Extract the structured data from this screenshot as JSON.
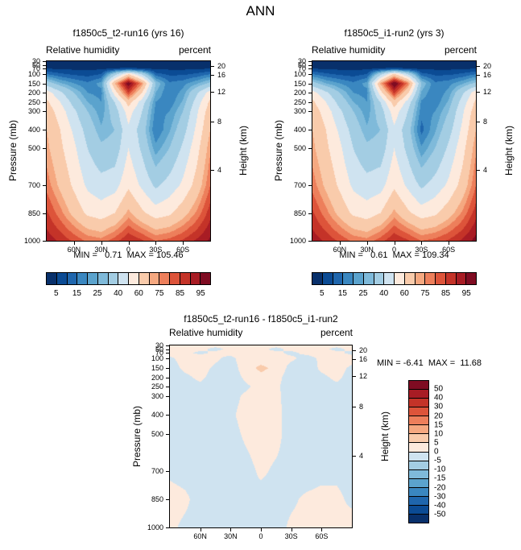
{
  "title": "ANN",
  "chart_data": [
    {
      "type": "heatmap",
      "panel": "top-left",
      "title": "f1850c5_t2-run16 (yrs 16)",
      "field_label": "Relative humidity",
      "units_label": "percent",
      "ylabel": "Pressure (mb)",
      "y2label": "Height (km)",
      "min_max_label": "MIN =   0.71  MAX = 105.46",
      "min": 0.71,
      "max": 105.46,
      "lat_range": [
        90,
        -90
      ],
      "p_range": [
        30,
        1000
      ],
      "x_tick_labels": [
        "60N",
        "30N",
        "0",
        "30S",
        "60S"
      ],
      "x_tick_lats": [
        60,
        30,
        0,
        -30,
        -60
      ],
      "y_ticks": [
        30,
        50,
        70,
        100,
        150,
        200,
        250,
        300,
        400,
        500,
        700,
        850,
        1000
      ],
      "y2_ticks": [
        20,
        16,
        12,
        8,
        4
      ],
      "levels": [
        5,
        10,
        15,
        20,
        25,
        30,
        40,
        50,
        60,
        70,
        75,
        80,
        85,
        90,
        95
      ],
      "colorbar_tick_labels": [
        "5",
        "15",
        "25",
        "40",
        "60",
        "75",
        "85",
        "95"
      ],
      "palette": [
        "#08306b",
        "#0b4b94",
        "#1f66ad",
        "#3a87c0",
        "#5ba3cd",
        "#7fbada",
        "#a3cde3",
        "#cfe3f0",
        "#fdeadd",
        "#f9cbab",
        "#f5a880",
        "#ed7f5b",
        "#dd543a",
        "#c43328",
        "#a81c24",
        "#7f0c22"
      ],
      "lats": [
        90,
        75,
        60,
        45,
        30,
        15,
        0,
        -15,
        -30,
        -45,
        -60,
        -75,
        -90
      ],
      "plevs": [
        30,
        50,
        70,
        100,
        150,
        200,
        250,
        300,
        400,
        500,
        700,
        850,
        1000
      ],
      "values": [
        [
          2,
          2,
          2,
          2,
          2,
          2,
          2,
          2,
          2,
          2,
          2,
          2,
          2
        ],
        [
          3,
          3,
          3,
          3,
          3,
          3,
          3,
          3,
          3,
          3,
          3,
          3,
          3
        ],
        [
          5,
          4,
          4,
          4,
          4,
          5,
          6,
          5,
          4,
          4,
          4,
          4,
          5
        ],
        [
          15,
          11,
          9,
          8,
          10,
          35,
          60,
          38,
          12,
          9,
          9,
          11,
          15
        ],
        [
          35,
          26,
          20,
          16,
          22,
          70,
          100,
          75,
          30,
          16,
          18,
          24,
          32
        ],
        [
          55,
          42,
          30,
          20,
          18,
          55,
          85,
          60,
          25,
          15,
          22,
          38,
          55
        ],
        [
          62,
          50,
          36,
          25,
          20,
          40,
          65,
          45,
          20,
          16,
          26,
          44,
          62
        ],
        [
          66,
          55,
          42,
          30,
          22,
          35,
          55,
          40,
          18,
          20,
          30,
          48,
          66
        ],
        [
          70,
          60,
          48,
          36,
          26,
          30,
          48,
          35,
          15,
          24,
          36,
          52,
          70
        ],
        [
          72,
          62,
          52,
          40,
          32,
          34,
          50,
          38,
          22,
          30,
          42,
          56,
          74
        ],
        [
          78,
          68,
          58,
          48,
          44,
          46,
          58,
          48,
          38,
          44,
          52,
          64,
          80
        ],
        [
          86,
          77,
          67,
          58,
          55,
          60,
          72,
          62,
          55,
          58,
          66,
          76,
          88
        ],
        [
          93,
          89,
          84,
          79,
          77,
          83,
          90,
          86,
          80,
          82,
          86,
          91,
          96
        ]
      ]
    },
    {
      "type": "heatmap",
      "panel": "top-right",
      "title": "f1850c5_i1-run2 (yrs 3)",
      "field_label": "Relative humidity",
      "units_label": "percent",
      "ylabel": "Pressure (mb)",
      "y2label": "Height (km)",
      "min_max_label": "MIN =   0.61  MAX = 109.34",
      "min": 0.61,
      "max": 109.34,
      "lat_range": [
        90,
        -90
      ],
      "p_range": [
        30,
        1000
      ],
      "x_tick_labels": [
        "60N",
        "30N",
        "0",
        "30S",
        "60S"
      ],
      "x_tick_lats": [
        60,
        30,
        0,
        -30,
        -60
      ],
      "y_ticks": [
        30,
        50,
        70,
        100,
        150,
        200,
        250,
        300,
        400,
        500,
        700,
        850,
        1000
      ],
      "y2_ticks": [
        20,
        16,
        12,
        8,
        4
      ],
      "levels": [
        5,
        10,
        15,
        20,
        25,
        30,
        40,
        50,
        60,
        70,
        75,
        80,
        85,
        90,
        95
      ],
      "colorbar_tick_labels": [
        "5",
        "15",
        "25",
        "40",
        "60",
        "75",
        "85",
        "95"
      ],
      "palette": [
        "#08306b",
        "#0b4b94",
        "#1f66ad",
        "#3a87c0",
        "#5ba3cd",
        "#7fbada",
        "#a3cde3",
        "#cfe3f0",
        "#fdeadd",
        "#f9cbab",
        "#f5a880",
        "#ed7f5b",
        "#dd543a",
        "#c43328",
        "#a81c24",
        "#7f0c22"
      ],
      "lats": [
        90,
        75,
        60,
        45,
        30,
        15,
        0,
        -15,
        -30,
        -45,
        -60,
        -75,
        -90
      ],
      "plevs": [
        30,
        50,
        70,
        100,
        150,
        200,
        250,
        300,
        400,
        500,
        700,
        850,
        1000
      ],
      "values": [
        [
          2,
          2,
          2,
          2,
          2,
          2,
          2,
          2,
          2,
          2,
          2,
          2,
          2
        ],
        [
          3,
          3,
          3,
          3,
          3,
          3,
          3,
          3,
          3,
          3,
          3,
          3,
          3
        ],
        [
          5,
          4,
          4,
          4,
          4,
          5,
          6,
          5,
          4,
          4,
          4,
          4,
          5
        ],
        [
          15,
          11,
          9,
          8,
          10,
          36,
          62,
          40,
          12,
          9,
          9,
          11,
          15
        ],
        [
          34,
          25,
          20,
          16,
          22,
          72,
          102,
          78,
          30,
          16,
          18,
          24,
          32
        ],
        [
          54,
          42,
          30,
          20,
          18,
          56,
          86,
          62,
          24,
          15,
          22,
          38,
          56
        ],
        [
          62,
          50,
          36,
          25,
          20,
          40,
          66,
          46,
          19,
          16,
          26,
          44,
          62
        ],
        [
          66,
          55,
          42,
          30,
          22,
          35,
          56,
          40,
          17,
          20,
          30,
          48,
          66
        ],
        [
          70,
          60,
          48,
          36,
          26,
          30,
          48,
          34,
          13,
          24,
          36,
          52,
          70
        ],
        [
          72,
          62,
          52,
          40,
          32,
          34,
          50,
          37,
          21,
          30,
          42,
          56,
          74
        ],
        [
          78,
          68,
          58,
          48,
          44,
          46,
          58,
          48,
          38,
          44,
          52,
          64,
          80
        ],
        [
          86,
          77,
          67,
          58,
          55,
          60,
          72,
          62,
          55,
          58,
          66,
          76,
          88
        ],
        [
          93,
          89,
          84,
          79,
          77,
          83,
          90,
          86,
          80,
          82,
          86,
          91,
          97
        ]
      ]
    },
    {
      "type": "heatmap",
      "panel": "bottom-difference",
      "title": "f1850c5_t2-run16 - f1850c5_i1-run2",
      "field_label": "Relative humidity",
      "units_label": "percent",
      "ylabel": "Pressure (mb)",
      "y2label": "Height (km)",
      "min_max_label": "MIN = -6.41  MAX =  11.68",
      "min": -6.41,
      "max": 11.68,
      "lat_range": [
        90,
        -90
      ],
      "p_range": [
        30,
        1000
      ],
      "x_tick_labels": [
        "60N",
        "30N",
        "0",
        "30S",
        "60S"
      ],
      "x_tick_lats": [
        60,
        30,
        0,
        -30,
        -60
      ],
      "y_ticks": [
        30,
        50,
        70,
        100,
        150,
        200,
        250,
        300,
        400,
        500,
        700,
        850,
        1000
      ],
      "y2_ticks": [
        20,
        16,
        12,
        8,
        4
      ],
      "levels": [
        -50,
        -40,
        -30,
        -20,
        -15,
        -10,
        -5,
        0,
        5,
        10,
        15,
        20,
        30,
        40,
        50
      ],
      "colorbar_tick_labels": [
        "50",
        "40",
        "30",
        "20",
        "15",
        "10",
        "5",
        "0",
        "-5",
        "-10",
        "-15",
        "-20",
        "-30",
        "-40",
        "-50"
      ],
      "palette": [
        "#08306b",
        "#0b4b94",
        "#1f66ad",
        "#3a87c0",
        "#5ba3cd",
        "#7fbada",
        "#a3cde3",
        "#cfe3f0",
        "#fdeadd",
        "#f9cbab",
        "#f5a880",
        "#ed7f5b",
        "#dd543a",
        "#c43328",
        "#a81c24",
        "#7f0c22"
      ],
      "lats": [
        90,
        75,
        60,
        45,
        30,
        15,
        0,
        -15,
        -30,
        -45,
        -60,
        -75,
        -90
      ],
      "plevs": [
        30,
        50,
        70,
        100,
        150,
        200,
        250,
        300,
        400,
        500,
        700,
        850,
        1000
      ],
      "values": [
        [
          1,
          1,
          1,
          1,
          1,
          1,
          1,
          1,
          1,
          1,
          1,
          1,
          1
        ],
        [
          1,
          2,
          1,
          -1,
          1,
          2,
          1,
          -1,
          1,
          2,
          1,
          -1,
          1
        ],
        [
          2,
          1,
          -1,
          1,
          2,
          3,
          1,
          1,
          -1,
          1,
          2,
          1,
          -1
        ],
        [
          -1,
          2,
          3,
          1,
          -2,
          4,
          3,
          2,
          1,
          -2,
          1,
          3,
          2
        ],
        [
          -2,
          1,
          2,
          -1,
          -3,
          3,
          6,
          4,
          -2,
          -3,
          1,
          2,
          -1
        ],
        [
          -2,
          -1,
          1,
          -2,
          -3,
          1,
          4,
          2,
          -3,
          -2,
          -1,
          1,
          -2
        ],
        [
          -2,
          -2,
          -1,
          -3,
          -2,
          -1,
          2,
          1,
          -3,
          -2,
          -2,
          -1,
          -2
        ],
        [
          -1,
          -2,
          -2,
          -3,
          -2,
          1,
          3,
          2,
          -4,
          -3,
          -2,
          -2,
          -1
        ],
        [
          -2,
          -1,
          -3,
          -2,
          -1,
          2,
          4,
          3,
          -5,
          -3,
          -2,
          -1,
          -2
        ],
        [
          -2,
          -2,
          -2,
          -1,
          -2,
          1,
          3,
          2,
          -3,
          -2,
          -1,
          -2,
          -3
        ],
        [
          -1,
          -2,
          -3,
          -2,
          -3,
          -2,
          1,
          -1,
          -2,
          -3,
          -2,
          -1,
          -2
        ],
        [
          2,
          1,
          -2,
          -3,
          -2,
          -1,
          -2,
          -2,
          -1,
          1,
          2,
          1,
          -1
        ],
        [
          1,
          -1,
          -2,
          -1,
          -2,
          -1,
          -1,
          -2,
          1,
          2,
          3,
          1,
          2
        ]
      ]
    }
  ]
}
